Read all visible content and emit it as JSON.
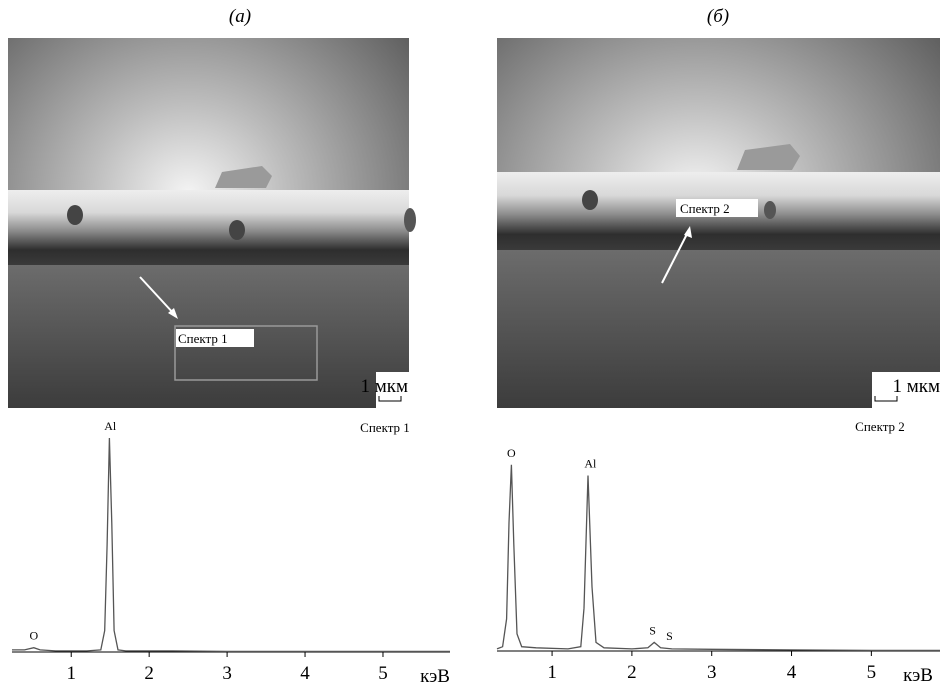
{
  "panels": [
    {
      "label": "(а)",
      "image_label": "Спектр 1",
      "scale": "1 мкм"
    },
    {
      "label": "(б)",
      "image_label": "Спектр 2",
      "scale": "1 мкм"
    }
  ],
  "chart_data": [
    {
      "type": "line",
      "title": "Спектр 1",
      "x_label": "кэВ",
      "xlim": [
        0.24,
        5.86
      ],
      "ylim": [
        0,
        100
      ],
      "xticks": [
        1,
        2,
        3,
        4,
        5
      ],
      "x": [
        0.24,
        0.4,
        0.52,
        0.6,
        0.8,
        1.2,
        1.38,
        1.43,
        1.46,
        1.49,
        1.52,
        1.55,
        1.6,
        1.7,
        2.0,
        2.3,
        3,
        4,
        5,
        5.86
      ],
      "series": [
        {
          "color": "#555555",
          "values": [
            1,
            1,
            2,
            1,
            0.5,
            0.5,
            1,
            10,
            50,
            100,
            60,
            10,
            1,
            0.5,
            0.5,
            0.5,
            0.3,
            0.3,
            0.3,
            0.3
          ]
        }
      ],
      "peaks": [
        {
          "label": "O",
          "x": 0.52
        },
        {
          "label": "Al",
          "x": 1.5
        }
      ]
    },
    {
      "type": "line",
      "title": "Спектр 2",
      "x_label": "кэВ",
      "xlim": [
        0.31,
        5.86
      ],
      "ylim": [
        0,
        100
      ],
      "xticks": [
        1,
        2,
        3,
        4,
        5
      ],
      "x": [
        0.31,
        0.38,
        0.43,
        0.46,
        0.49,
        0.52,
        0.56,
        0.62,
        0.8,
        1.2,
        1.36,
        1.4,
        1.45,
        1.5,
        1.55,
        1.65,
        2.0,
        2.2,
        2.28,
        2.36,
        2.5,
        3,
        4,
        5,
        5.86
      ],
      "series": [
        {
          "color": "#555555",
          "values": [
            1,
            2,
            15,
            60,
            87,
            50,
            8,
            2,
            1.5,
            1,
            2,
            20,
            82,
            30,
            4,
            1.5,
            1,
            1.5,
            4,
            1.5,
            1,
            0.8,
            0.5,
            0.3,
            0.3
          ]
        }
      ],
      "peaks": [
        {
          "label": "O",
          "x": 0.49
        },
        {
          "label": "Al",
          "x": 1.48
        },
        {
          "label": "S",
          "x": 2.26
        },
        {
          "label": "S",
          "x": 2.47
        }
      ]
    }
  ]
}
